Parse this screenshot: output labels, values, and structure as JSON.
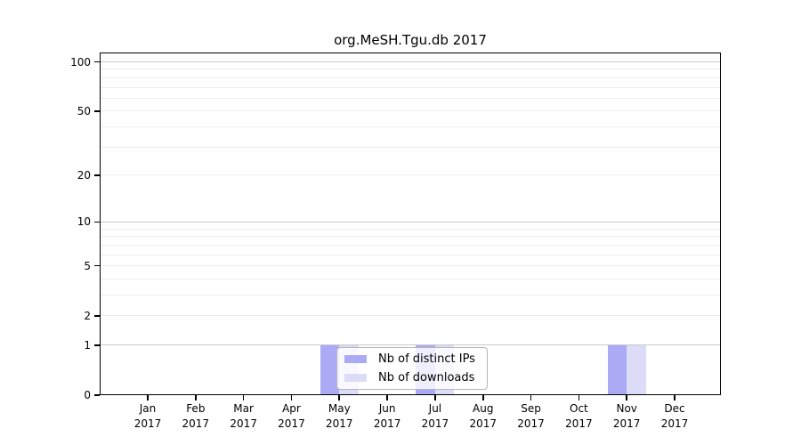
{
  "chart_data": {
    "type": "bar",
    "title": "org.MeSH.Tgu.db 2017",
    "x_categories": [
      {
        "month": "Jan",
        "year": "2017"
      },
      {
        "month": "Feb",
        "year": "2017"
      },
      {
        "month": "Mar",
        "year": "2017"
      },
      {
        "month": "Apr",
        "year": "2017"
      },
      {
        "month": "May",
        "year": "2017"
      },
      {
        "month": "Jun",
        "year": "2017"
      },
      {
        "month": "Jul",
        "year": "2017"
      },
      {
        "month": "Aug",
        "year": "2017"
      },
      {
        "month": "Sep",
        "year": "2017"
      },
      {
        "month": "Oct",
        "year": "2017"
      },
      {
        "month": "Nov",
        "year": "2017"
      },
      {
        "month": "Dec",
        "year": "2017"
      }
    ],
    "series": [
      {
        "name": "Nb of distinct IPs",
        "values": [
          0,
          0,
          0,
          0,
          1,
          0,
          1,
          0,
          0,
          0,
          1,
          0
        ]
      },
      {
        "name": "Nb of downloads",
        "values": [
          0,
          0,
          0,
          0,
          1,
          0,
          1,
          0,
          0,
          0,
          1,
          0
        ]
      }
    ],
    "y_axis": {
      "scale": "log1p",
      "ticks": [
        0,
        1,
        2,
        5,
        10,
        20,
        50,
        100
      ],
      "major_gridlines": [
        1,
        10,
        100
      ],
      "minor_gridlines": [
        2,
        3,
        4,
        5,
        6,
        7,
        8,
        9,
        20,
        30,
        40,
        50,
        60,
        70,
        80,
        90
      ],
      "top_value": 114
    },
    "legend_position": "inside-bottom-center",
    "grid": true
  },
  "legend": {
    "items": [
      {
        "label": "Nb of distinct IPs",
        "color_key": "bar_distinct_ips"
      },
      {
        "label": "Nb of downloads",
        "color_key": "bar_downloads"
      }
    ]
  },
  "colors": {
    "bar_distinct_ips": "#aaaaf5",
    "bar_downloads": "#dcdcf8",
    "grid_major": "#c9c9c9",
    "grid_minor": "#ececec",
    "axis": "#000000",
    "legend_border": "#b6b6b6",
    "legend_bg": "rgba(255,255,255,0.8)",
    "text": "#000000"
  }
}
